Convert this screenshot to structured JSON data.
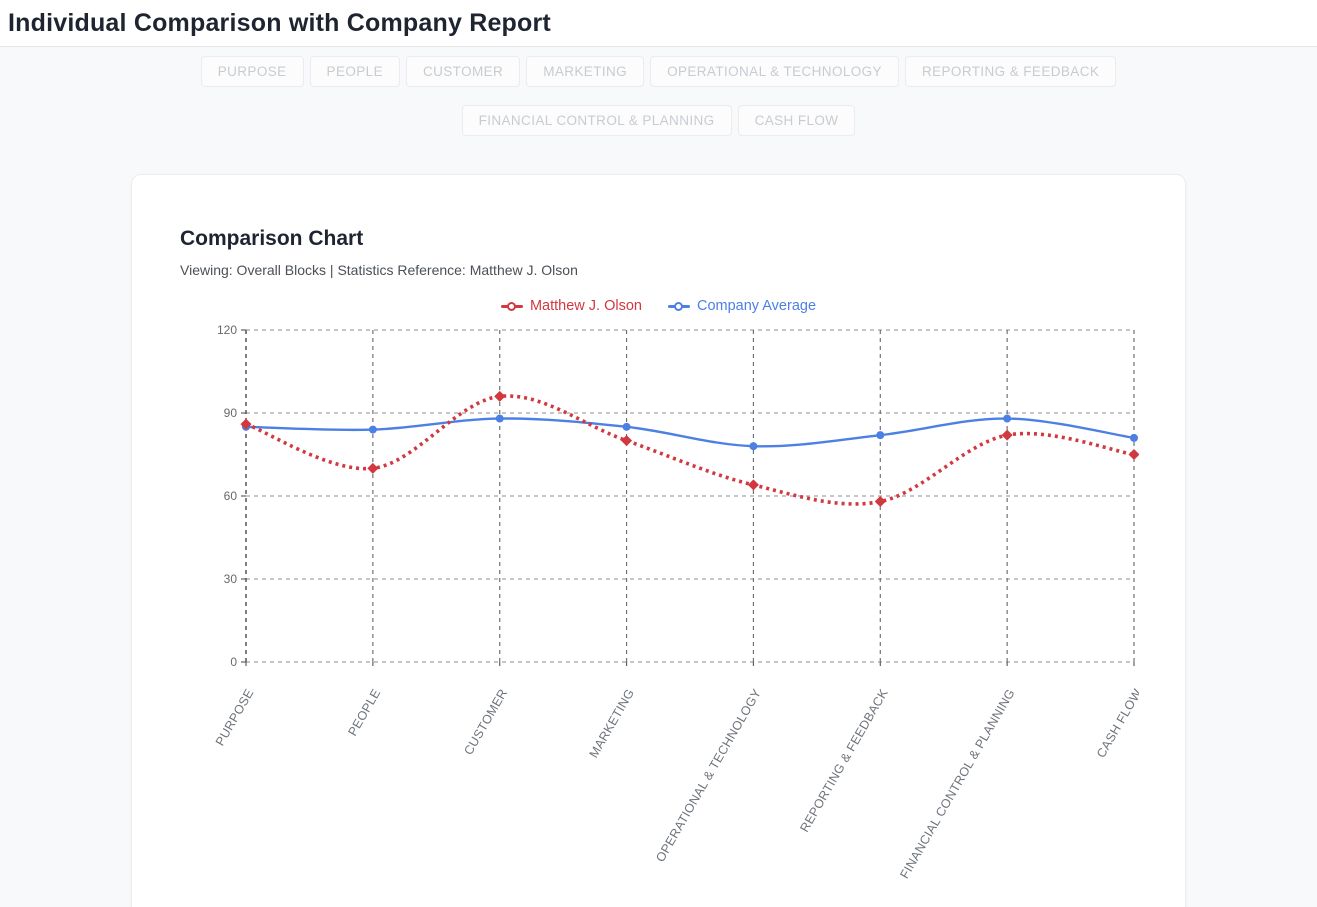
{
  "header": {
    "title": "Individual Comparison with Company Report"
  },
  "tabs": {
    "row1": [
      "PURPOSE",
      "PEOPLE",
      "CUSTOMER",
      "MARKETING",
      "OPERATIONAL & TECHNOLOGY",
      "REPORTING & FEEDBACK"
    ],
    "row2": [
      "FINANCIAL CONTROL & PLANNING",
      "CASH FLOW"
    ]
  },
  "card": {
    "title": "Comparison Chart",
    "subtitle": "Viewing: Overall Blocks | Statistics Reference: Matthew J. Olson"
  },
  "chart_data": {
    "type": "line",
    "categories": [
      "PURPOSE",
      "PEOPLE",
      "CUSTOMER",
      "MARKETING",
      "OPERATIONAL & TECHNOLOGY",
      "REPORTING & FEEDBACK",
      "FINANCIAL CONTROL & PLANNING",
      "CASH FLOW"
    ],
    "series": [
      {
        "name": "Matthew J. Olson",
        "color": "#d2383f",
        "style": "dotted",
        "marker": "diamond",
        "values": [
          86,
          70,
          96,
          80,
          64,
          58,
          82,
          75
        ]
      },
      {
        "name": "Company Average",
        "color": "#4d80e4",
        "style": "solid",
        "marker": "circle",
        "values": [
          85,
          84,
          88,
          85,
          78,
          82,
          88,
          81
        ]
      }
    ],
    "ylim": [
      0,
      120
    ],
    "yticks": [
      0,
      30,
      60,
      90,
      120
    ],
    "grid": "dashed",
    "legend_position": "top",
    "colors": {
      "grid_horizontal": "#a3a5a8",
      "grid_vertical": "#6f7275",
      "axis": "#5d6064",
      "tick_label": "#66696d",
      "category_label": "#6e747b"
    }
  }
}
